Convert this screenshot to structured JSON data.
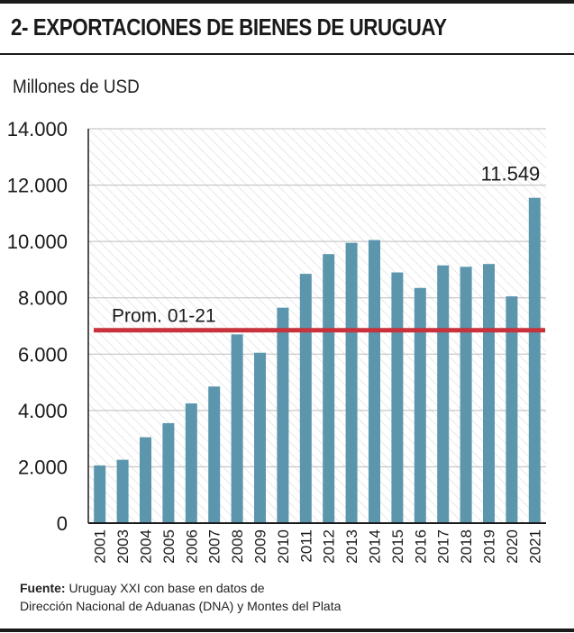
{
  "header": {
    "title": "2- EXPORTACIONES DE BIENES DE URUGUAY",
    "unit": "Millones de USD"
  },
  "source": {
    "label": "Fuente:",
    "line1": "Uruguay XXI con base en datos de",
    "line2": "Dirección Nacional de Aduanas (DNA) y Montes del Plata"
  },
  "colors": {
    "bar": "#5b96ad",
    "average_line": "#c8323c",
    "hatch": "#d8d8d8",
    "text": "#1a1a1a"
  },
  "chart_data": {
    "type": "bar",
    "title": "2- EXPORTACIONES DE BIENES DE URUGUAY",
    "ylabel": "Millones de USD",
    "xlabel": "",
    "ylim": [
      0,
      14000
    ],
    "yticks": [
      0,
      2000,
      4000,
      6000,
      8000,
      10000,
      12000,
      14000
    ],
    "ytick_labels": [
      "0",
      "2.000",
      "4.000",
      "6.000",
      "8.000",
      "10.000",
      "12.000",
      "14.000"
    ],
    "categories": [
      "2001",
      "2003",
      "2004",
      "2005",
      "2006",
      "2007",
      "2008",
      "2009",
      "2010",
      "2011",
      "2012",
      "2013",
      "2014",
      "2015",
      "2016",
      "2017",
      "2018",
      "2019",
      "2020",
      "2021"
    ],
    "values": [
      2050,
      2250,
      3050,
      3550,
      4250,
      4850,
      6700,
      6050,
      7650,
      8850,
      9550,
      9950,
      10050,
      8900,
      8350,
      9150,
      9100,
      9200,
      8050,
      11549
    ],
    "grid": true,
    "annotations": [
      {
        "category": "2021",
        "text": "11.549"
      }
    ],
    "reference_line": {
      "label": "Prom. 01-21",
      "value": 6850
    }
  }
}
